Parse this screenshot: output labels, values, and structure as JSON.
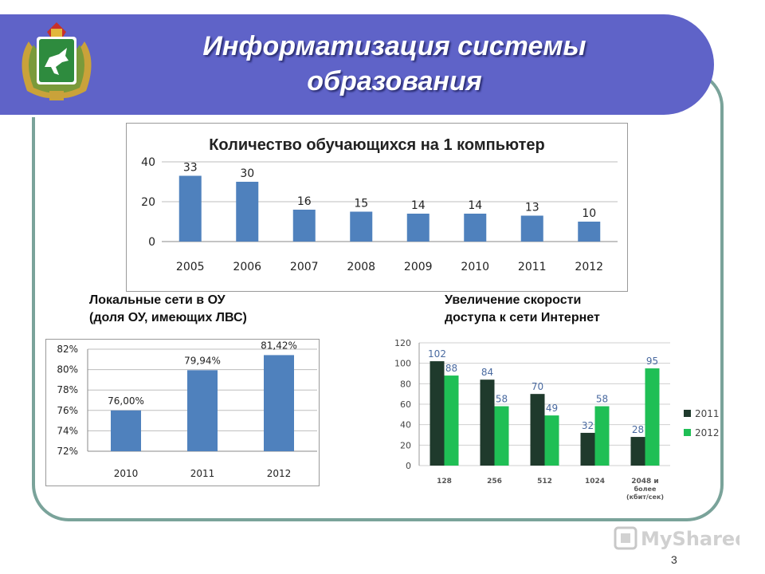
{
  "slide": {
    "title_line1": "Информатизация системы",
    "title_line2": "образования",
    "page_number": "3",
    "watermark": "MyShared"
  },
  "captions": {
    "left_line1": "Локальные сети в ОУ",
    "left_line2": "(доля ОУ, имеющих ЛВС)",
    "right_line1": "Увеличение скорости",
    "right_line2": "доступа к сети Интернет"
  },
  "colors": {
    "banner": "#5f63c8",
    "bar_blue": "#4f81bd",
    "bar_dark": "#1f3a2c",
    "bar_green": "#1fbf55",
    "frame": "#7aa39a"
  },
  "chart_data": [
    {
      "type": "bar",
      "title": "Количество обучающихся на 1 компьютер",
      "categories": [
        "2005",
        "2006",
        "2007",
        "2008",
        "2009",
        "2010",
        "2011",
        "2012"
      ],
      "values": [
        33,
        30,
        16,
        15,
        14,
        14,
        13,
        10
      ],
      "data_labels": [
        "33",
        "30",
        "16",
        "15",
        "14",
        "14",
        "13",
        "10"
      ],
      "ylim": [
        0,
        40
      ],
      "yticks": [
        "0",
        "20",
        "40"
      ],
      "grid": true,
      "legend": "none"
    },
    {
      "type": "bar",
      "title": "",
      "categories": [
        "2010",
        "2011",
        "2012"
      ],
      "values": [
        76.0,
        79.94,
        81.42
      ],
      "data_labels": [
        "76,00%",
        "79,94%",
        "81,42%"
      ],
      "ylim": [
        72,
        82
      ],
      "yticks": [
        "72%",
        "74%",
        "76%",
        "78%",
        "80%",
        "82%"
      ],
      "grid": true,
      "legend": "none"
    },
    {
      "type": "bar",
      "title": "",
      "categories": [
        "128",
        "256",
        "512",
        "1024",
        "2048 и более (кбит/сек)"
      ],
      "category_lines": [
        [
          "128"
        ],
        [
          "256"
        ],
        [
          "512"
        ],
        [
          "1024"
        ],
        [
          "2048 и",
          "более",
          "(кбит/сек)"
        ]
      ],
      "series": [
        {
          "name": "2011",
          "values": [
            102,
            84,
            70,
            32,
            28
          ],
          "labels": [
            "102",
            "84",
            "70",
            "32",
            "28"
          ]
        },
        {
          "name": "2012",
          "values": [
            88,
            58,
            49,
            58,
            95
          ],
          "labels": [
            "88",
            "58",
            "49",
            "58",
            "95"
          ]
        }
      ],
      "ylim": [
        0,
        120
      ],
      "yticks": [
        "0",
        "20",
        "40",
        "60",
        "80",
        "100",
        "120"
      ],
      "grid": true,
      "legend": "right"
    }
  ]
}
